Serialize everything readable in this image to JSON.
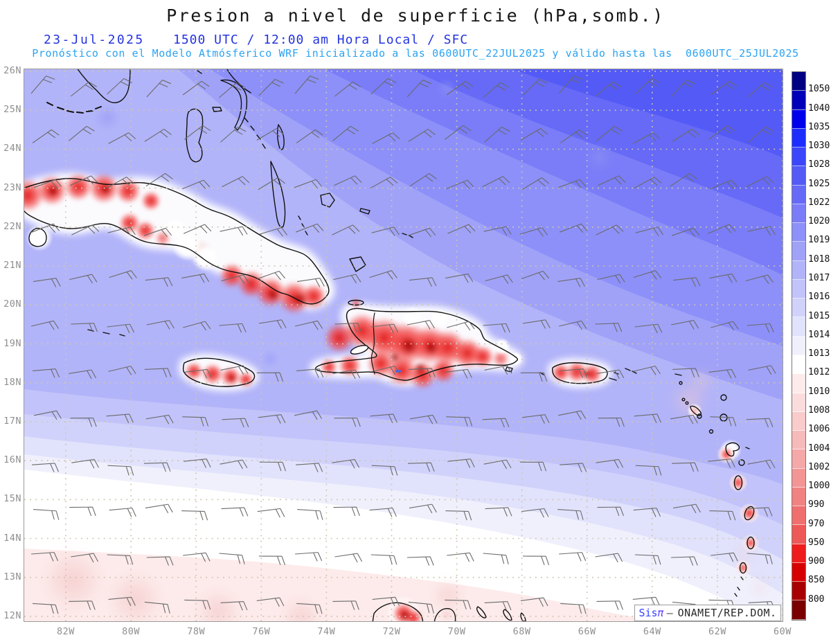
{
  "header": {
    "title": "Presion a nivel de superficie (hPa,somb.)",
    "date": "23-Jul-2025",
    "time_line": "1500 UTC / 12:00 am Hora Local / SFC",
    "forecast_line": "Pronóstico con el Modelo Atmósferico WRF inicializado a las 0600UTC_22JUL2025 y válido hasta las  0600UTC_25JUL2025",
    "title_color": "#161616",
    "date_color": "#2433e0",
    "time_color": "#2433e0",
    "forecast_color": "#2aa3f2"
  },
  "map": {
    "lat_labels": [
      "26N",
      "25N",
      "24N",
      "23N",
      "22N",
      "21N",
      "20N",
      "19N",
      "18N",
      "17N",
      "16N",
      "15N",
      "14N",
      "13N",
      "12N"
    ],
    "lon_labels": [
      "82W",
      "80W",
      "78W",
      "76W",
      "74W",
      "72W",
      "70W",
      "68W",
      "66W",
      "64W",
      "62W",
      "60W"
    ],
    "axis_label_color": "#8f8f8f",
    "grid_dot_color": "#cdc6b0",
    "wind_barb_color": "#6a6a6a",
    "coastline_color": "#101010",
    "sea_band_cells": [
      16,
      15,
      14,
      13,
      12,
      11,
      10,
      9,
      8,
      7,
      6,
      5
    ]
  },
  "colorbar": {
    "units": "hPa",
    "tick_labels": [
      "1050",
      "1040",
      "1035",
      "1030",
      "1028",
      "1025",
      "1022",
      "1020",
      "1019",
      "1018",
      "1017",
      "1016",
      "1015",
      "1014",
      "1013",
      "1012",
      "1010",
      "1008",
      "1006",
      "1004",
      "1002",
      "1000",
      "990",
      "970",
      "950",
      "900",
      "850",
      "800"
    ],
    "cell_colors": [
      "#000082",
      "#0000b8",
      "#0000ea",
      "#1e2dff",
      "#3c47fb",
      "#545af6",
      "#666af6",
      "#7a7df7",
      "#8d90f8",
      "#a0a2f8",
      "#b2b4f9",
      "#c2c3fa",
      "#d1d2fb",
      "#e1e2fc",
      "#f0f0fd",
      "#ffffff",
      "#fdebeb",
      "#fbdcdc",
      "#f9cbcb",
      "#f7baba",
      "#f5a8a8",
      "#f39595",
      "#f18282",
      "#ef6e6e",
      "#ed5858",
      "#ee1c1c",
      "#d60000",
      "#a80000",
      "#7a0000"
    ],
    "label_color": "#0e0e0e"
  },
  "shading": {
    "red_strong": "#e01010",
    "red_mid": "#f24545",
    "red_dark_core": "#9c0000",
    "white_halo": "#ffffff",
    "pink_soft": "#f5caca",
    "sea_spot": "#878bf5"
  },
  "watermark": {
    "prefix": "Sis",
    "pi": "π",
    "separator": "—",
    "org": "ONAMET/REP.DOM."
  }
}
